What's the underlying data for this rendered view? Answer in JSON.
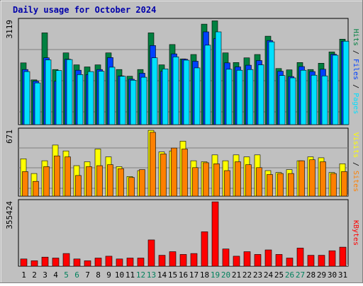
{
  "title": "Daily usage for October 2024",
  "colors": {
    "frame": "#c0c0c0",
    "plot_bg": "#c0c0c0",
    "hits": "#008040",
    "files": "#0040ff",
    "pages": "#00e0ff",
    "visits": "#ffff00",
    "sites": "#ff8000",
    "kbytes": "#ff0000",
    "weekend_label": "#00805c"
  },
  "chart_data": [
    {
      "type": "bar",
      "panel": "top",
      "max_label": "3119",
      "ylim": [
        0,
        3119
      ],
      "legend": [
        "Hits",
        "Files",
        "Pages"
      ],
      "legend_separator": "/",
      "categories": [
        "1",
        "2",
        "3",
        "4",
        "5",
        "6",
        "7",
        "8",
        "9",
        "10",
        "11",
        "12",
        "13",
        "14",
        "15",
        "16",
        "17",
        "18",
        "19",
        "20",
        "21",
        "22",
        "23",
        "24",
        "25",
        "26",
        "27",
        "28",
        "29",
        "30",
        "31"
      ],
      "series": [
        {
          "name": "Hits",
          "values": [
            1850,
            1340,
            2750,
            1650,
            2150,
            1790,
            1730,
            1790,
            2150,
            1650,
            1450,
            1650,
            2750,
            1790,
            2400,
            1970,
            2100,
            3010,
            3110,
            2150,
            1860,
            2000,
            2100,
            2650,
            1680,
            1640,
            1860,
            1650,
            1840,
            2180,
            2560
          ]
        },
        {
          "name": "Files",
          "values": [
            1650,
            1300,
            2000,
            1300,
            1960,
            1630,
            1500,
            1650,
            2010,
            1460,
            1360,
            1540,
            2370,
            1600,
            2120,
            1960,
            1900,
            2780,
            2580,
            1850,
            1730,
            1780,
            1920,
            2520,
            1600,
            1440,
            1740,
            1590,
            1660,
            2110,
            2500
          ]
        },
        {
          "name": "Pages",
          "values": [
            1590,
            1250,
            1940,
            1620,
            1950,
            1500,
            1590,
            1600,
            1720,
            1450,
            1330,
            1420,
            2000,
            1670,
            2030,
            1930,
            1700,
            2380,
            2780,
            1660,
            1630,
            1650,
            1790,
            2480,
            1470,
            1400,
            1630,
            1480,
            1460,
            2080,
            2500
          ]
        }
      ]
    },
    {
      "type": "bar",
      "panel": "middle",
      "max_label": "671",
      "ylim": [
        0,
        671
      ],
      "legend": [
        "Visits",
        "Sites"
      ],
      "legend_separator": "/",
      "categories": [
        "1",
        "2",
        "3",
        "4",
        "5",
        "6",
        "7",
        "8",
        "9",
        "10",
        "11",
        "12",
        "13",
        "14",
        "15",
        "16",
        "17",
        "18",
        "19",
        "20",
        "21",
        "22",
        "23",
        "24",
        "25",
        "26",
        "27",
        "28",
        "29",
        "30",
        "31"
      ],
      "series": [
        {
          "name": "Visits",
          "values": [
            380,
            230,
            360,
            520,
            460,
            310,
            350,
            480,
            400,
            300,
            200,
            260,
            670,
            450,
            460,
            560,
            360,
            350,
            420,
            360,
            420,
            400,
            420,
            260,
            240,
            270,
            360,
            400,
            390,
            240,
            330
          ]
        },
        {
          "name": "Sites",
          "values": [
            250,
            150,
            300,
            410,
            400,
            210,
            300,
            310,
            320,
            280,
            190,
            270,
            650,
            430,
            490,
            480,
            290,
            340,
            330,
            260,
            350,
            320,
            290,
            220,
            230,
            230,
            360,
            370,
            350,
            230,
            250
          ]
        }
      ]
    },
    {
      "type": "bar",
      "panel": "bottom",
      "max_label": "355424",
      "ylim": [
        0,
        355424
      ],
      "legend": [
        "KBytes"
      ],
      "categories": [
        "1",
        "2",
        "3",
        "4",
        "5",
        "6",
        "7",
        "8",
        "9",
        "10",
        "11",
        "12",
        "13",
        "14",
        "15",
        "16",
        "17",
        "18",
        "19",
        "20",
        "21",
        "22",
        "23",
        "24",
        "25",
        "26",
        "27",
        "28",
        "29",
        "30",
        "31"
      ],
      "series": [
        {
          "name": "KBytes",
          "values": [
            40000,
            30000,
            50000,
            45000,
            70000,
            40000,
            30000,
            45000,
            55000,
            40000,
            45000,
            45000,
            145000,
            60000,
            80000,
            65000,
            70000,
            190000,
            355000,
            95000,
            55000,
            80000,
            65000,
            90000,
            65000,
            45000,
            100000,
            60000,
            60000,
            85000,
            105000
          ]
        }
      ]
    }
  ],
  "x_tick_labels": [
    "1",
    "2",
    "3",
    "4",
    "5",
    "6",
    "7",
    "8",
    "9",
    "10",
    "11",
    "12",
    "13",
    "14",
    "15",
    "16",
    "17",
    "18",
    "19",
    "20",
    "21",
    "22",
    "23",
    "24",
    "25",
    "26",
    "27",
    "28",
    "29",
    "30",
    "31"
  ],
  "weekend_days": [
    "5",
    "6",
    "12",
    "13",
    "19",
    "20",
    "26",
    "27"
  ]
}
